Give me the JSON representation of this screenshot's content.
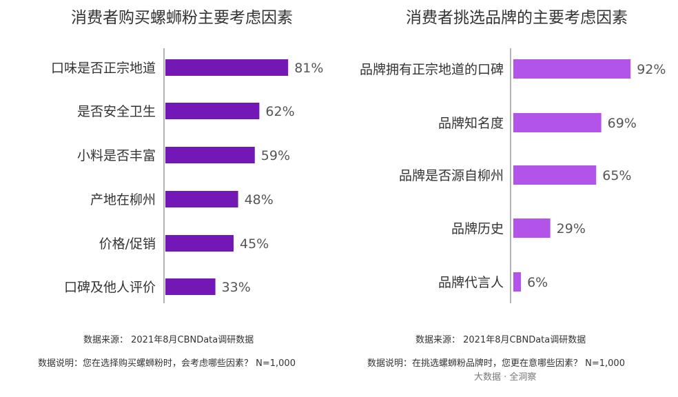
{
  "chart_data": [
    {
      "type": "bar",
      "orientation": "horizontal",
      "title": "消费者购买螺蛳粉主要考虑因素",
      "categories": [
        "口味是否正宗地道",
        "是否安全卫生",
        "小料是否丰富",
        "产地在柳州",
        "价格/促销",
        "口碑及他人评价"
      ],
      "values": [
        81,
        62,
        59,
        48,
        45,
        33
      ],
      "value_labels": [
        "81%",
        "62%",
        "59%",
        "48%",
        "45%",
        "33%"
      ],
      "xlim": [
        0,
        100
      ],
      "color": "#7318B4",
      "grid": false,
      "source": "数据来源：  2021年8月CBNData调研数据",
      "note": "数据说明：您在选择购买螺蛳粉时，会考虑哪些因素？ N=1,000"
    },
    {
      "type": "bar",
      "orientation": "horizontal",
      "title": "消费者挑选品牌的主要考虑因素",
      "categories": [
        "品牌拥有正宗地道的口碑",
        "品牌知名度",
        "品牌是否源自柳州",
        "品牌历史",
        "品牌代言人"
      ],
      "values": [
        92,
        69,
        65,
        29,
        6
      ],
      "value_labels": [
        "92%",
        "69%",
        "65%",
        "29%",
        "6%"
      ],
      "xlim": [
        0,
        100
      ],
      "color": "#B354E8",
      "grid": false,
      "source": "数据来源：  2021年8月CBNData调研数据",
      "note": "数据说明：在挑选螺蛳粉品牌时，您更在意哪些因素？ N=1,000"
    }
  ],
  "credit": "大数据 · 全洞察"
}
